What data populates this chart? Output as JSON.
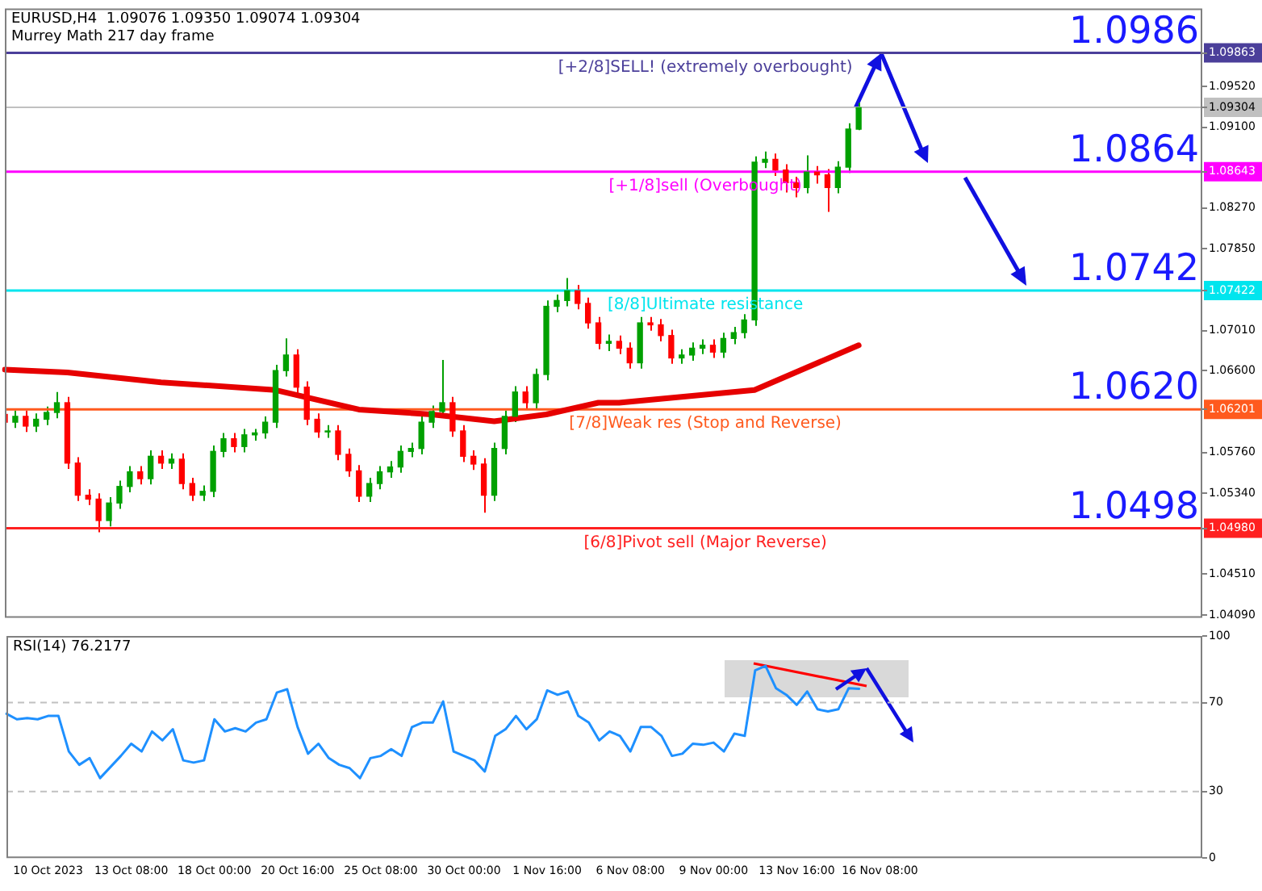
{
  "chart_data": [
    {
      "type": "candlestick",
      "title": "EURUSD,H4  1.09076 1.09350 1.09074 1.09304",
      "subtitle": "Murrey Math 217 day frame",
      "categories": [
        null,
        null,
        null,
        null,
        null,
        null,
        null,
        null,
        null,
        null,
        null,
        null,
        null,
        null,
        null,
        null,
        null,
        null,
        null,
        null,
        null,
        null,
        null,
        null,
        null,
        null,
        null,
        null,
        null,
        null,
        null,
        null,
        null,
        null,
        null,
        null,
        null,
        null,
        null,
        null,
        null,
        null,
        null,
        null,
        null,
        null,
        null,
        null,
        null,
        null,
        null,
        null,
        null,
        null,
        null,
        null,
        null,
        null,
        null,
        null,
        null,
        null,
        null,
        null,
        null,
        null,
        null,
        null,
        null,
        null,
        null,
        null,
        null,
        null,
        null,
        null,
        null,
        null,
        null,
        null,
        null,
        null,
        null,
        null,
        null,
        null,
        null,
        null,
        null,
        null,
        null,
        null,
        null,
        null,
        null,
        null,
        null,
        null,
        null,
        null,
        null,
        null,
        null,
        null,
        null,
        null,
        null,
        null,
        null,
        null,
        null,
        null,
        null,
        null,
        null,
        null
      ],
      "ohlc": [
        [
          1.0615,
          1.0621,
          1.0601,
          1.0607
        ],
        [
          1.0607,
          1.0619,
          1.0601,
          1.0613
        ],
        [
          1.0613,
          1.0619,
          1.0597,
          1.0603
        ],
        [
          1.0603,
          1.0616,
          1.0597,
          1.061
        ],
        [
          1.061,
          1.0623,
          1.0604,
          1.0617
        ],
        [
          1.0617,
          1.0638,
          1.0611,
          1.0627
        ],
        [
          1.0627,
          1.0633,
          1.0559,
          1.0565
        ],
        [
          1.0565,
          1.0571,
          1.0526,
          1.0532
        ],
        [
          1.0532,
          1.0538,
          1.0522,
          1.0528
        ],
        [
          1.0528,
          1.0534,
          1.0494,
          1.0506
        ],
        [
          1.0506,
          1.053,
          1.05,
          1.0524
        ],
        [
          1.0524,
          1.0547,
          1.0518,
          1.0541
        ],
        [
          1.0541,
          1.0562,
          1.0535,
          1.0556
        ],
        [
          1.0556,
          1.0562,
          1.0543,
          1.0549
        ],
        [
          1.0549,
          1.0578,
          1.0543,
          1.0572
        ],
        [
          1.0572,
          1.0578,
          1.0559,
          1.0565
        ],
        [
          1.0565,
          1.0575,
          1.0559,
          1.0569
        ],
        [
          1.0569,
          1.0575,
          1.0538,
          1.0544
        ],
        [
          1.0544,
          1.055,
          1.0526,
          1.0532
        ],
        [
          1.0532,
          1.0542,
          1.0526,
          1.0536
        ],
        [
          1.0536,
          1.0583,
          1.053,
          1.0577
        ],
        [
          1.0577,
          1.0596,
          1.0571,
          1.059
        ],
        [
          1.059,
          1.0596,
          1.0576,
          1.0582
        ],
        [
          1.0582,
          1.06,
          1.0576,
          1.0594
        ],
        [
          1.0594,
          1.06,
          1.0588,
          1.0596
        ],
        [
          1.0596,
          1.0613,
          1.059,
          1.0607
        ],
        [
          1.0607,
          1.0666,
          1.0601,
          1.066
        ],
        [
          1.066,
          1.0693,
          1.0654,
          1.0676
        ],
        [
          1.0676,
          1.0682,
          1.0637,
          1.0643
        ],
        [
          1.0643,
          1.0649,
          1.0604,
          1.061
        ],
        [
          1.061,
          1.0616,
          1.0591,
          1.0597
        ],
        [
          1.0597,
          1.0604,
          1.0591,
          1.0598
        ],
        [
          1.0598,
          1.0604,
          1.0568,
          1.0574
        ],
        [
          1.0574,
          1.058,
          1.0551,
          1.0557
        ],
        [
          1.0557,
          1.0563,
          1.0525,
          1.0531
        ],
        [
          1.0531,
          1.055,
          1.0525,
          1.0544
        ],
        [
          1.0544,
          1.0562,
          1.0538,
          1.0556
        ],
        [
          1.0556,
          1.0567,
          1.055,
          1.0561
        ],
        [
          1.0561,
          1.0583,
          1.0555,
          1.0577
        ],
        [
          1.0577,
          1.0586,
          1.0571,
          1.058
        ],
        [
          1.058,
          1.0613,
          1.0574,
          1.0607
        ],
        [
          1.0607,
          1.0624,
          1.0601,
          1.0618
        ],
        [
          1.0618,
          1.0671,
          1.0612,
          1.0627
        ],
        [
          1.0627,
          1.0633,
          1.0592,
          1.0598
        ],
        [
          1.0598,
          1.0604,
          1.0566,
          1.0572
        ],
        [
          1.0572,
          1.0578,
          1.0558,
          1.0564
        ],
        [
          1.0564,
          1.057,
          1.0514,
          1.0532
        ],
        [
          1.0532,
          1.0586,
          1.0526,
          1.058
        ],
        [
          1.058,
          1.0619,
          1.0574,
          1.0613
        ],
        [
          1.0613,
          1.0644,
          1.0607,
          1.0638
        ],
        [
          1.0638,
          1.0644,
          1.0621,
          1.0627
        ],
        [
          1.0627,
          1.0662,
          1.0621,
          1.0656
        ],
        [
          1.0656,
          1.0732,
          1.065,
          1.0726
        ],
        [
          1.0726,
          1.0738,
          1.072,
          1.0732
        ],
        [
          1.0732,
          1.0755,
          1.0726,
          1.0742
        ],
        [
          1.0742,
          1.0748,
          1.0723,
          1.0729
        ],
        [
          1.0729,
          1.0735,
          1.0703,
          1.0709
        ],
        [
          1.0709,
          1.0715,
          1.0682,
          1.0688
        ],
        [
          1.0688,
          1.0697,
          1.068,
          1.069
        ],
        [
          1.069,
          1.0696,
          1.0677,
          1.0683
        ],
        [
          1.0683,
          1.0689,
          1.0662,
          1.0668
        ],
        [
          1.0668,
          1.0715,
          1.0662,
          1.0709
        ],
        [
          1.0709,
          1.0715,
          1.0701,
          1.0707
        ],
        [
          1.0707,
          1.0713,
          1.069,
          1.0696
        ],
        [
          1.0696,
          1.0702,
          1.0667,
          1.0673
        ],
        [
          1.0673,
          1.0682,
          1.0667,
          1.0676
        ],
        [
          1.0676,
          1.0689,
          1.067,
          1.0683
        ],
        [
          1.0683,
          1.0692,
          1.0677,
          1.0686
        ],
        [
          1.0686,
          1.0692,
          1.0673,
          1.0679
        ],
        [
          1.0679,
          1.0699,
          1.0673,
          1.0693
        ],
        [
          1.0693,
          1.0705,
          1.0687,
          1.0699
        ],
        [
          1.0699,
          1.0718,
          1.0693,
          1.0712
        ],
        [
          1.0712,
          1.088,
          1.0706,
          1.0874
        ],
        [
          1.0874,
          1.0885,
          1.0868,
          1.0877
        ],
        [
          1.0877,
          1.0883,
          1.086,
          1.0866
        ],
        [
          1.0866,
          1.0872,
          1.0843,
          1.0853
        ],
        [
          1.0853,
          1.0859,
          1.0838,
          1.0848
        ],
        [
          1.0848,
          1.0881,
          1.0842,
          1.0864
        ],
        [
          1.0864,
          1.087,
          1.0852,
          1.0861
        ],
        [
          1.0861,
          1.0867,
          1.0823,
          1.0848
        ],
        [
          1.0848,
          1.0875,
          1.0842,
          1.0869
        ],
        [
          1.0869,
          1.0914,
          1.0863,
          1.0908
        ],
        [
          1.0908,
          1.0935,
          1.0907,
          1.093
        ],
        null,
        null,
        null,
        null,
        null,
        null,
        null,
        null,
        null,
        null,
        null,
        null,
        null,
        null,
        null,
        null,
        null,
        null,
        null,
        null,
        null,
        null,
        null,
        null,
        null,
        null,
        null,
        null,
        null,
        null,
        null,
        null,
        null
      ],
      "colors": [
        "#ff0000",
        "#00a000",
        "#ff0000",
        "#00a000",
        "#00a000",
        "#00a000",
        "#ff0000",
        "#ff0000",
        "#ff0000",
        "#ff0000",
        "#00a000",
        "#00a000",
        "#00a000",
        "#ff0000",
        "#00a000",
        "#ff0000",
        "#00a000",
        "#ff0000",
        "#ff0000",
        "#00a000",
        "#00a000",
        "#00a000",
        "#ff0000",
        "#00a000",
        "#00a000",
        "#00a000",
        "#00a000",
        "#00a000",
        "#ff0000",
        "#ff0000",
        "#ff0000",
        "#00a000",
        "#ff0000",
        "#ff0000",
        "#ff0000",
        "#00a000",
        "#00a000",
        "#00a000",
        "#00a000",
        "#00a000",
        "#00a000",
        "#00a000",
        "#00a000",
        "#ff0000",
        "#ff0000",
        "#ff0000",
        "#ff0000",
        "#00a000",
        "#00a000",
        "#00a000",
        "#ff0000",
        "#00a000",
        "#00a000",
        "#00a000",
        "#00a000",
        "#ff0000",
        "#ff0000",
        "#ff0000",
        "#00a000",
        "#ff0000",
        "#ff0000",
        "#00a000",
        "#ff0000",
        "#ff0000",
        "#ff0000",
        "#00a000",
        "#00a000",
        "#00a000",
        "#ff0000",
        "#00a000",
        "#00a000",
        "#00a000",
        "#00a000",
        "#00a000",
        "#ff0000",
        "#ff0000",
        "#ff0000",
        "#00a000",
        "#ff0000",
        "#ff0000",
        "#00a000",
        "#00a000",
        "#00a000",
        null,
        null,
        null,
        null,
        null,
        null,
        null,
        null,
        null,
        null,
        null,
        null,
        null,
        null,
        null,
        null,
        null,
        null,
        null,
        null,
        null,
        null,
        null,
        null,
        null,
        null,
        null,
        null,
        null,
        null,
        null,
        null,
        null
      ],
      "series": [
        {
          "type": "line",
          "color": "#e60000",
          "values": [
            1.0661,
            null,
            null,
            null,
            null,
            null,
            1.0658,
            null,
            null,
            null,
            null,
            null,
            null,
            null,
            null,
            1.0648,
            null,
            null,
            null,
            null,
            null,
            null,
            null,
            null,
            null,
            null,
            1.064,
            null,
            null,
            null,
            null,
            null,
            null,
            null,
            1.062,
            null,
            null,
            null,
            null,
            null,
            null,
            1.0615,
            null,
            null,
            null,
            null,
            null,
            1.0608,
            null,
            null,
            null,
            null,
            1.0615,
            null,
            null,
            null,
            null,
            1.0627,
            null,
            1.0627,
            null,
            null,
            null,
            null,
            null,
            null,
            null,
            null,
            null,
            null,
            null,
            null,
            1.064,
            null,
            null,
            null,
            null,
            null,
            null,
            null,
            null,
            null,
            1.0686,
            null,
            null,
            null,
            null,
            null,
            null,
            null,
            null,
            null,
            null,
            null,
            null,
            null,
            null,
            null,
            null,
            null,
            null,
            null,
            null,
            null,
            null,
            null,
            null,
            null,
            null,
            null,
            null,
            null,
            null,
            null,
            null,
            null
          ]
        }
      ],
      "ylim": [
        1.0406,
        1.1032
      ],
      "yticks": [
        {
          "value": 1.0409,
          "label": "1.04090"
        },
        {
          "value": 1.0451,
          "label": "1.04510"
        },
        {
          "value": 1.0498,
          "label": "1.04980"
        },
        {
          "value": 1.0534,
          "label": "1.05340"
        },
        {
          "value": 1.0576,
          "label": "1.05760"
        },
        {
          "value": 1.06201,
          "label": "1.06201"
        },
        {
          "value": 1.066,
          "label": "1.06600"
        },
        {
          "value": 1.0701,
          "label": "1.07010"
        },
        {
          "value": 1.07422,
          "label": "1.07422"
        },
        {
          "value": 1.0785,
          "label": "1.07850"
        },
        {
          "value": 1.0827,
          "label": "1.08270"
        },
        {
          "value": 1.08643,
          "label": "1.08643"
        },
        {
          "value": 1.091,
          "label": "1.09100"
        },
        {
          "value": 1.09304,
          "label": "1.09304"
        },
        {
          "value": 1.0952,
          "label": "1.09520"
        },
        {
          "value": 1.09863,
          "label": "1.09863"
        }
      ],
      "ref_lines": [
        {
          "axis": "y",
          "value": 1.09863,
          "label": "[+2/8]SELL! (extremely overbought)",
          "color": "#4b3f9a"
        },
        {
          "axis": "y",
          "value": 1.09304,
          "color": "#c0c0c0"
        },
        {
          "axis": "y",
          "value": 1.08643,
          "label": "[+1/8]sell (Overbought)",
          "color": "#ff00ff"
        },
        {
          "axis": "y",
          "value": 1.07422,
          "label": "[8/8]Ultimate resistance",
          "color": "#00e5ee"
        },
        {
          "axis": "y",
          "value": 1.06201,
          "label": "[7/8]Weak res (Stop and Reverse)",
          "color": "#ff5a1e"
        },
        {
          "axis": "y",
          "value": 1.0498,
          "label": "[6/8]Pivot sell (Major Reverse)",
          "color": "#ff2020"
        }
      ],
      "annotations": [
        {
          "text": "1.0986",
          "y": 1.0986
        },
        {
          "text": "1.0864",
          "y": 1.0864
        },
        {
          "text": "1.0742",
          "y": 1.0742
        },
        {
          "text": "1.0620",
          "y": 1.062
        },
        {
          "text": "1.0498",
          "y": 1.0498
        }
      ],
      "tick_labels": "y",
      "legend": false
    },
    {
      "type": "line",
      "title": "RSI(14) 76.2177",
      "categories": [
        null,
        null,
        null,
        null,
        "10 Oct 2023",
        null,
        null,
        null,
        null,
        null,
        null,
        null,
        "13 Oct 08:00",
        null,
        null,
        null,
        null,
        null,
        null,
        null,
        "18 Oct 00:00",
        null,
        null,
        null,
        null,
        null,
        null,
        null,
        "20 Oct 16:00",
        null,
        null,
        null,
        null,
        null,
        null,
        null,
        "25 Oct 08:00",
        null,
        null,
        null,
        null,
        null,
        null,
        null,
        "30 Oct 00:00",
        null,
        null,
        null,
        null,
        null,
        null,
        null,
        "1 Nov 16:00",
        null,
        null,
        null,
        null,
        null,
        null,
        null,
        "6 Nov 08:00",
        null,
        null,
        null,
        null,
        null,
        null,
        null,
        "9 Nov 00:00",
        null,
        null,
        null,
        null,
        null,
        null,
        null,
        "13 Nov 16:00",
        null,
        null,
        null,
        null,
        null,
        null,
        null,
        "16 Nov 08:00",
        null,
        null,
        null,
        null,
        null,
        null,
        null,
        null,
        null,
        null,
        null,
        null,
        null,
        null,
        null,
        null,
        null,
        null,
        null,
        null,
        null,
        null,
        null,
        null,
        null,
        null,
        null,
        null,
        null,
        null,
        null
      ],
      "series": [
        {
          "color": "#1e90ff",
          "values": [
            65,
            62.5,
            63,
            62.5,
            64,
            64,
            48,
            42,
            45,
            36,
            41,
            46,
            51.5,
            48,
            57,
            53,
            58,
            44,
            43,
            44,
            62.5,
            57,
            58.5,
            57,
            61,
            62.5,
            74.5,
            76,
            59,
            47,
            51.5,
            45,
            42,
            40.5,
            36,
            45,
            46,
            49,
            46,
            59,
            61,
            61,
            70.5,
            48,
            46,
            44,
            39,
            55,
            58,
            64,
            58,
            62.5,
            75.5,
            73.5,
            75,
            64,
            61,
            53,
            57,
            55,
            48,
            59,
            59,
            55,
            46,
            47,
            51.5,
            51,
            52,
            48,
            56,
            55,
            84.5,
            86.5,
            76.5,
            73.5,
            69,
            75,
            67,
            66,
            67,
            76.5,
            76.2,
            null,
            null,
            null,
            null,
            null,
            null,
            null,
            null,
            null,
            null,
            null,
            null,
            null,
            null,
            null,
            null,
            null,
            null,
            null,
            null,
            null,
            null,
            null,
            null,
            null,
            null,
            null,
            null,
            null,
            null,
            null,
            null,
            null
          ]
        }
      ],
      "ylim": [
        0,
        100
      ],
      "yticks": [
        0,
        30,
        70,
        100
      ],
      "ref_lines": [
        {
          "axis": "y",
          "value": 30,
          "color": "#c0c0c0",
          "line_style": "dashed"
        },
        {
          "axis": "y",
          "value": 70,
          "color": "#c0c0c0",
          "line_style": "dashed"
        }
      ],
      "legend": false
    }
  ]
}
